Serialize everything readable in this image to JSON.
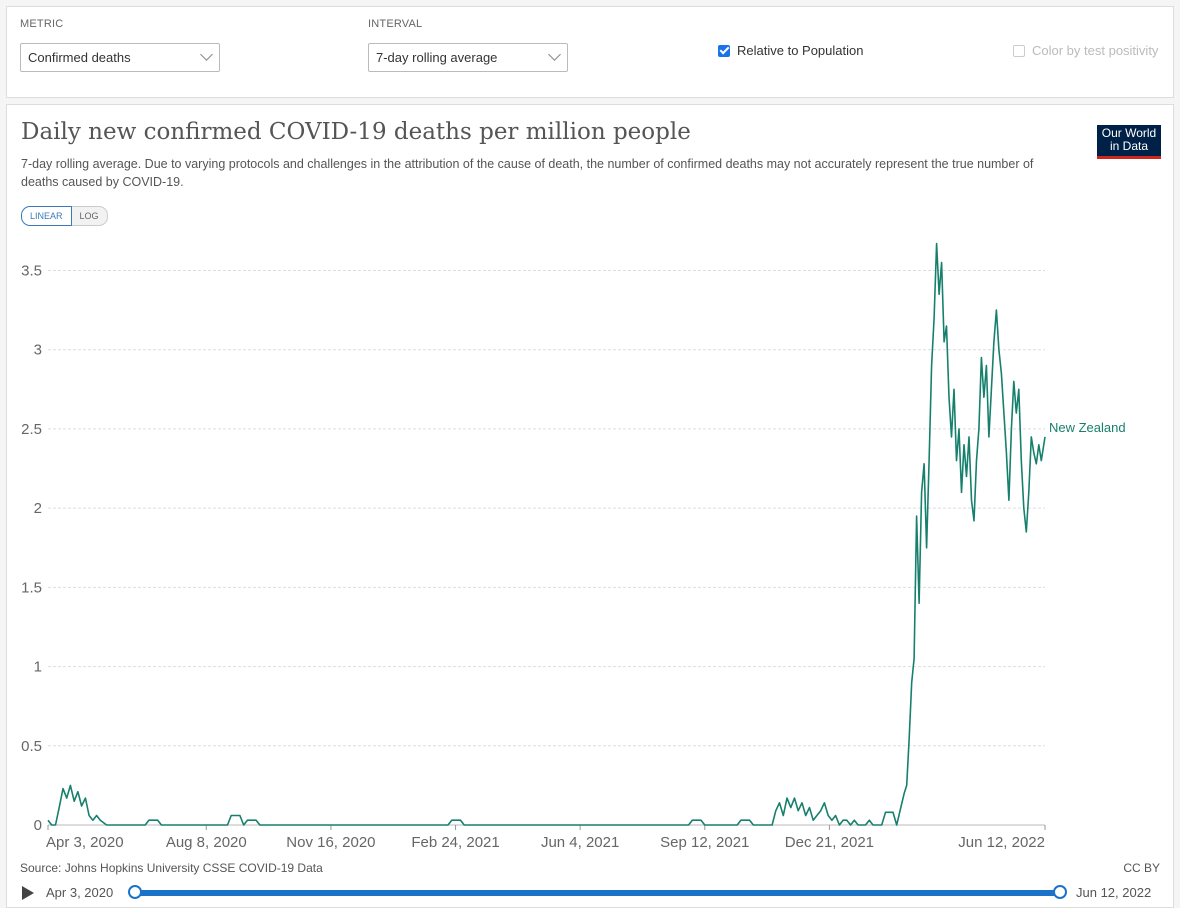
{
  "controls": {
    "metric_label": "METRIC",
    "metric_value": "Confirmed deaths",
    "interval_label": "INTERVAL",
    "interval_value": "7-day rolling average",
    "relative_label": "Relative to Population",
    "relative_checked": true,
    "positivity_label": "Color by test positivity",
    "positivity_checked": false
  },
  "logo": {
    "line1": "Our World",
    "line2": "in Data"
  },
  "scale": {
    "linear": "LINEAR",
    "log": "LOG",
    "active": "linear"
  },
  "footer": {
    "source": "Source: Johns Hopkins University CSSE COVID-19 Data",
    "license": "CC BY"
  },
  "timeline": {
    "start": "Apr 3, 2020",
    "end": "Jun 12, 2022"
  },
  "colors": {
    "series": "#17806d",
    "grid": "#dddddd",
    "timeline": "#1a73c8"
  },
  "chart_data": {
    "type": "line",
    "title": "Daily new confirmed COVID-19 deaths per million people",
    "subtitle": "7-day rolling average. Due to varying protocols and challenges in the attribution of the cause of death, the number of confirmed deaths may not accurately represent the true number of deaths caused by COVID-19.",
    "xlabel": "",
    "ylabel": "",
    "x_range": [
      "2020-04-03",
      "2022-06-12"
    ],
    "ylim": [
      0,
      3.5
    ],
    "y_ticks": [
      0,
      0.5,
      1,
      1.5,
      2,
      2.5,
      3,
      3.5
    ],
    "x_tick_labels": [
      {
        "date": "2020-04-03",
        "label": "Apr 3, 2020"
      },
      {
        "date": "2020-08-08",
        "label": "Aug 8, 2020"
      },
      {
        "date": "2020-11-16",
        "label": "Nov 16, 2020"
      },
      {
        "date": "2021-02-24",
        "label": "Feb 24, 2021"
      },
      {
        "date": "2021-06-04",
        "label": "Jun 4, 2021"
      },
      {
        "date": "2021-09-12",
        "label": "Sep 12, 2021"
      },
      {
        "date": "2021-12-21",
        "label": "Dec 21, 2021"
      },
      {
        "date": "2022-06-12",
        "label": "Jun 12, 2022"
      }
    ],
    "grid": true,
    "series": [
      {
        "name": "New Zealand",
        "points": [
          [
            "2020-04-03",
            0.03
          ],
          [
            "2020-04-06",
            0.0
          ],
          [
            "2020-04-09",
            0.0
          ],
          [
            "2020-04-12",
            0.11
          ],
          [
            "2020-04-15",
            0.23
          ],
          [
            "2020-04-18",
            0.17
          ],
          [
            "2020-04-21",
            0.25
          ],
          [
            "2020-04-24",
            0.15
          ],
          [
            "2020-04-27",
            0.21
          ],
          [
            "2020-04-30",
            0.12
          ],
          [
            "2020-05-03",
            0.17
          ],
          [
            "2020-05-06",
            0.06
          ],
          [
            "2020-05-09",
            0.03
          ],
          [
            "2020-05-12",
            0.06
          ],
          [
            "2020-05-15",
            0.03
          ],
          [
            "2020-05-20",
            0.0
          ],
          [
            "2020-06-20",
            0.0
          ],
          [
            "2020-06-23",
            0.03
          ],
          [
            "2020-06-30",
            0.03
          ],
          [
            "2020-07-03",
            0.0
          ],
          [
            "2020-08-25",
            0.0
          ],
          [
            "2020-08-28",
            0.06
          ],
          [
            "2020-09-04",
            0.06
          ],
          [
            "2020-09-07",
            0.0
          ],
          [
            "2020-09-10",
            0.03
          ],
          [
            "2020-09-17",
            0.03
          ],
          [
            "2020-09-20",
            0.0
          ],
          [
            "2021-02-18",
            0.0
          ],
          [
            "2021-02-21",
            0.03
          ],
          [
            "2021-02-28",
            0.03
          ],
          [
            "2021-03-03",
            0.0
          ],
          [
            "2021-08-30",
            0.0
          ],
          [
            "2021-09-02",
            0.03
          ],
          [
            "2021-09-09",
            0.03
          ],
          [
            "2021-09-12",
            0.0
          ],
          [
            "2021-10-08",
            0.0
          ],
          [
            "2021-10-11",
            0.03
          ],
          [
            "2021-10-18",
            0.03
          ],
          [
            "2021-10-21",
            0.0
          ],
          [
            "2021-11-05",
            0.0
          ],
          [
            "2021-11-08",
            0.09
          ],
          [
            "2021-11-11",
            0.14
          ],
          [
            "2021-11-14",
            0.06
          ],
          [
            "2021-11-17",
            0.17
          ],
          [
            "2021-11-20",
            0.11
          ],
          [
            "2021-11-23",
            0.17
          ],
          [
            "2021-11-26",
            0.09
          ],
          [
            "2021-11-29",
            0.14
          ],
          [
            "2021-12-02",
            0.06
          ],
          [
            "2021-12-05",
            0.11
          ],
          [
            "2021-12-08",
            0.03
          ],
          [
            "2021-12-11",
            0.06
          ],
          [
            "2021-12-14",
            0.09
          ],
          [
            "2021-12-17",
            0.14
          ],
          [
            "2021-12-20",
            0.06
          ],
          [
            "2021-12-23",
            0.03
          ],
          [
            "2021-12-26",
            0.06
          ],
          [
            "2021-12-29",
            0.0
          ],
          [
            "2022-01-01",
            0.03
          ],
          [
            "2022-01-04",
            0.03
          ],
          [
            "2022-01-07",
            0.0
          ],
          [
            "2022-01-10",
            0.03
          ],
          [
            "2022-01-13",
            0.0
          ],
          [
            "2022-01-19",
            0.0
          ],
          [
            "2022-01-22",
            0.03
          ],
          [
            "2022-01-25",
            0.0
          ],
          [
            "2022-02-01",
            0.0
          ],
          [
            "2022-02-04",
            0.08
          ],
          [
            "2022-02-10",
            0.08
          ],
          [
            "2022-02-13",
            0.0
          ],
          [
            "2022-02-16",
            0.1
          ],
          [
            "2022-02-19",
            0.2
          ],
          [
            "2022-02-21",
            0.25
          ],
          [
            "2022-02-23",
            0.55
          ],
          [
            "2022-02-25",
            0.9
          ],
          [
            "2022-02-27",
            1.05
          ],
          [
            "2022-03-01",
            1.95
          ],
          [
            "2022-03-03",
            1.4
          ],
          [
            "2022-03-05",
            2.1
          ],
          [
            "2022-03-07",
            2.28
          ],
          [
            "2022-03-09",
            1.75
          ],
          [
            "2022-03-11",
            2.3
          ],
          [
            "2022-03-13",
            2.9
          ],
          [
            "2022-03-15",
            3.2
          ],
          [
            "2022-03-17",
            3.67
          ],
          [
            "2022-03-19",
            3.35
          ],
          [
            "2022-03-21",
            3.55
          ],
          [
            "2022-03-23",
            3.05
          ],
          [
            "2022-03-25",
            3.15
          ],
          [
            "2022-03-27",
            2.7
          ],
          [
            "2022-03-29",
            2.45
          ],
          [
            "2022-03-31",
            2.75
          ],
          [
            "2022-04-02",
            2.3
          ],
          [
            "2022-04-04",
            2.5
          ],
          [
            "2022-04-06",
            2.1
          ],
          [
            "2022-04-08",
            2.4
          ],
          [
            "2022-04-10",
            2.2
          ],
          [
            "2022-04-12",
            2.45
          ],
          [
            "2022-04-14",
            2.05
          ],
          [
            "2022-04-16",
            1.92
          ],
          [
            "2022-04-18",
            2.3
          ],
          [
            "2022-04-20",
            2.5
          ],
          [
            "2022-04-22",
            2.95
          ],
          [
            "2022-04-24",
            2.7
          ],
          [
            "2022-04-26",
            2.9
          ],
          [
            "2022-04-28",
            2.45
          ],
          [
            "2022-04-30",
            2.75
          ],
          [
            "2022-05-02",
            3.05
          ],
          [
            "2022-05-04",
            3.25
          ],
          [
            "2022-05-06",
            3.0
          ],
          [
            "2022-05-08",
            2.85
          ],
          [
            "2022-05-10",
            2.6
          ],
          [
            "2022-05-12",
            2.35
          ],
          [
            "2022-05-14",
            2.05
          ],
          [
            "2022-05-16",
            2.5
          ],
          [
            "2022-05-18",
            2.8
          ],
          [
            "2022-05-20",
            2.6
          ],
          [
            "2022-05-22",
            2.75
          ],
          [
            "2022-05-24",
            2.3
          ],
          [
            "2022-05-26",
            2.0
          ],
          [
            "2022-05-28",
            1.85
          ],
          [
            "2022-05-30",
            2.1
          ],
          [
            "2022-06-01",
            2.45
          ],
          [
            "2022-06-03",
            2.35
          ],
          [
            "2022-06-05",
            2.28
          ],
          [
            "2022-06-07",
            2.4
          ],
          [
            "2022-06-09",
            2.3
          ],
          [
            "2022-06-12",
            2.45
          ]
        ]
      }
    ]
  }
}
